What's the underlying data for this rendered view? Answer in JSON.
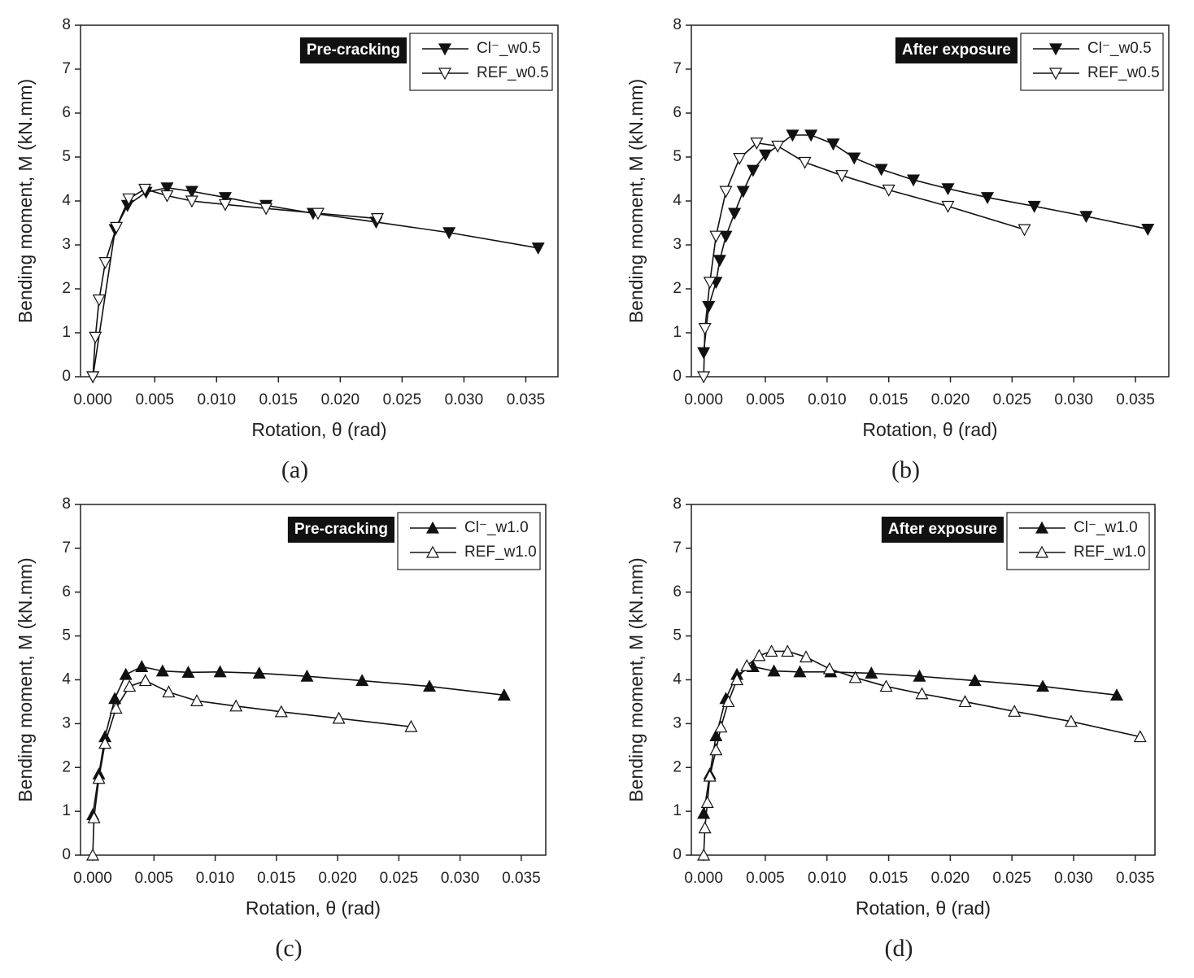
{
  "chart_data": [
    {
      "type": "line",
      "panel_label": "(a)",
      "annotation": "Pre-cracking",
      "x_label": "Rotation, θ (rad)",
      "y_label": "Bending moment, M (kN.mm)",
      "xlim": [
        -0.001,
        0.0376
      ],
      "ylim": [
        0,
        8
      ],
      "xticks": [
        {
          "value": 0,
          "label": "0.000"
        },
        {
          "value": 0.005,
          "label": "0.005"
        },
        {
          "value": 0.01,
          "label": "0.010"
        },
        {
          "value": 0.015,
          "label": "0.015"
        },
        {
          "value": 0.02,
          "label": "0.020"
        },
        {
          "value": 0.025,
          "label": "0.025"
        },
        {
          "value": 0.03,
          "label": "0.030"
        },
        {
          "value": 0.035,
          "label": "0.035"
        }
      ],
      "yticks": [
        0,
        1,
        2,
        3,
        4,
        5,
        6,
        7,
        8
      ],
      "legend": "upper right",
      "series": [
        {
          "name": "Cl⁻_w0.5",
          "color": "#111",
          "marker": "triangle-down",
          "marker_fill": "#111",
          "x": [
            0,
            0.0018,
            0.0028,
            0.0043,
            0.006,
            0.008,
            0.0107,
            0.014,
            0.0178,
            0.0229,
            0.0288,
            0.036
          ],
          "values": [
            0,
            3.35,
            3.9,
            4.2,
            4.3,
            4.22,
            4.08,
            3.9,
            3.72,
            3.52,
            3.28,
            2.93
          ]
        },
        {
          "name": "REF_w0.5",
          "color": "#111",
          "marker": "triangle-down",
          "marker_fill": "#fff",
          "x": [
            0,
            0.0002,
            0.0005,
            0.001,
            0.0019,
            0.0029,
            0.0042,
            0.006,
            0.008,
            0.0107,
            0.014,
            0.0182,
            0.023
          ],
          "values": [
            0,
            0.9,
            1.75,
            2.6,
            3.4,
            4.05,
            4.27,
            4.12,
            4.0,
            3.92,
            3.83,
            3.72,
            3.6
          ]
        }
      ]
    },
    {
      "type": "line",
      "panel_label": "(b)",
      "annotation": "After exposure",
      "x_label": "Rotation, θ (rad)",
      "y_label": "Bending moment, M (kN.mm)",
      "xlim": [
        -0.001,
        0.0377
      ],
      "ylim": [
        0,
        8
      ],
      "xticks": [
        {
          "value": 0,
          "label": "0.000"
        },
        {
          "value": 0.005,
          "label": "0.005"
        },
        {
          "value": 0.01,
          "label": "0.010"
        },
        {
          "value": 0.015,
          "label": "0.015"
        },
        {
          "value": 0.02,
          "label": "0.020"
        },
        {
          "value": 0.025,
          "label": "0.025"
        },
        {
          "value": 0.03,
          "label": "0.030"
        },
        {
          "value": 0.035,
          "label": "0.035"
        }
      ],
      "yticks": [
        0,
        1,
        2,
        3,
        4,
        5,
        6,
        7,
        8
      ],
      "legend": "upper right",
      "series": [
        {
          "name": "Cl⁻_w0.5",
          "color": "#111",
          "marker": "triangle-down",
          "marker_fill": "#111",
          "x": [
            0,
            0.0004,
            0.001,
            0.0013,
            0.0018,
            0.0025,
            0.0032,
            0.004,
            0.005,
            0.0072,
            0.0087,
            0.0105,
            0.0122,
            0.0144,
            0.017,
            0.0198,
            0.023,
            0.0268,
            0.031,
            0.036
          ],
          "values": [
            0.55,
            1.6,
            2.15,
            2.65,
            3.2,
            3.72,
            4.22,
            4.7,
            5.05,
            5.5,
            5.5,
            5.3,
            4.98,
            4.72,
            4.48,
            4.28,
            4.08,
            3.88,
            3.65,
            3.36
          ]
        },
        {
          "name": "REF_w0.5",
          "color": "#111",
          "marker": "triangle-down",
          "marker_fill": "#fff",
          "x": [
            0,
            0.0001,
            0.0005,
            0.001,
            0.0018,
            0.0029,
            0.0043,
            0.006,
            0.0082,
            0.0112,
            0.015,
            0.0198,
            0.026
          ],
          "values": [
            0,
            1.1,
            2.15,
            3.2,
            4.22,
            4.97,
            5.32,
            5.25,
            4.88,
            4.58,
            4.25,
            3.88,
            3.35
          ]
        }
      ]
    },
    {
      "type": "line",
      "panel_label": "(c)",
      "annotation": "Pre-cracking",
      "x_label": "Rotation, θ (rad)",
      "y_label": "Bending moment, M (kN.mm)",
      "xlim": [
        -0.001,
        0.037
      ],
      "ylim": [
        0,
        8
      ],
      "xticks": [
        {
          "value": 0,
          "label": "0.000"
        },
        {
          "value": 0.005,
          "label": "0.005"
        },
        {
          "value": 0.01,
          "label": "0.010"
        },
        {
          "value": 0.015,
          "label": "0.015"
        },
        {
          "value": 0.02,
          "label": "0.020"
        },
        {
          "value": 0.025,
          "label": "0.025"
        },
        {
          "value": 0.03,
          "label": "0.030"
        },
        {
          "value": 0.035,
          "label": "0.035"
        }
      ],
      "yticks": [
        0,
        1,
        2,
        3,
        4,
        5,
        6,
        7,
        8
      ],
      "legend": "upper right",
      "series": [
        {
          "name": "Cl⁻_w1.0",
          "color": "#111",
          "marker": "triangle-up",
          "marker_fill": "#111",
          "x": [
            0,
            0.0005,
            0.001,
            0.0018,
            0.0027,
            0.004,
            0.0057,
            0.0078,
            0.0104,
            0.0136,
            0.0175,
            0.022,
            0.0275,
            0.0336
          ],
          "values": [
            0.92,
            1.85,
            2.7,
            3.57,
            4.12,
            4.3,
            4.2,
            4.17,
            4.18,
            4.15,
            4.08,
            3.98,
            3.85,
            3.65
          ]
        },
        {
          "name": "REF_w1.0",
          "color": "#111",
          "marker": "triangle-up",
          "marker_fill": "#fff",
          "x": [
            0,
            0.0001,
            0.0005,
            0.001,
            0.0019,
            0.003,
            0.0043,
            0.0062,
            0.0085,
            0.0117,
            0.0154,
            0.0201,
            0.026
          ],
          "values": [
            0,
            0.85,
            1.75,
            2.55,
            3.35,
            3.85,
            3.98,
            3.72,
            3.52,
            3.4,
            3.27,
            3.12,
            2.93
          ]
        }
      ]
    },
    {
      "type": "line",
      "panel_label": "(d)",
      "annotation": "After exposure",
      "x_label": "Rotation, θ (rad)",
      "y_label": "Bending moment, M (kN.mm)",
      "xlim": [
        -0.001,
        0.0366
      ],
      "ylim": [
        0,
        8
      ],
      "xticks": [
        {
          "value": 0,
          "label": "0.000"
        },
        {
          "value": 0.005,
          "label": "0.005"
        },
        {
          "value": 0.01,
          "label": "0.010"
        },
        {
          "value": 0.015,
          "label": "0.015"
        },
        {
          "value": 0.02,
          "label": "0.020"
        },
        {
          "value": 0.025,
          "label": "0.025"
        },
        {
          "value": 0.03,
          "label": "0.030"
        },
        {
          "value": 0.035,
          "label": "0.035"
        }
      ],
      "yticks": [
        0,
        1,
        2,
        3,
        4,
        5,
        6,
        7,
        8
      ],
      "legend": "upper right",
      "series": [
        {
          "name": "Cl⁻_w1.0",
          "color": "#111",
          "marker": "triangle-up",
          "marker_fill": "#111",
          "x": [
            0,
            0.0005,
            0.001,
            0.0018,
            0.0027,
            0.004,
            0.0057,
            0.0078,
            0.0103,
            0.0136,
            0.0175,
            0.022,
            0.0275,
            0.0335
          ],
          "values": [
            0.95,
            1.85,
            2.72,
            3.57,
            4.12,
            4.3,
            4.2,
            4.18,
            4.18,
            4.15,
            4.08,
            3.98,
            3.85,
            3.65
          ]
        },
        {
          "name": "REF_w1.0",
          "color": "#111",
          "marker": "triangle-up",
          "marker_fill": "#fff",
          "x": [
            0,
            0.0001,
            0.0003,
            0.0005,
            0.001,
            0.0014,
            0.002,
            0.0027,
            0.0035,
            0.0045,
            0.0055,
            0.0068,
            0.0083,
            0.0102,
            0.0123,
            0.0148,
            0.0177,
            0.0212,
            0.0252,
            0.0298,
            0.0354
          ],
          "values": [
            0,
            0.62,
            1.2,
            1.8,
            2.4,
            2.92,
            3.5,
            4.0,
            4.32,
            4.55,
            4.65,
            4.65,
            4.52,
            4.25,
            4.05,
            3.85,
            3.68,
            3.5,
            3.28,
            3.05,
            2.7
          ]
        }
      ]
    }
  ]
}
